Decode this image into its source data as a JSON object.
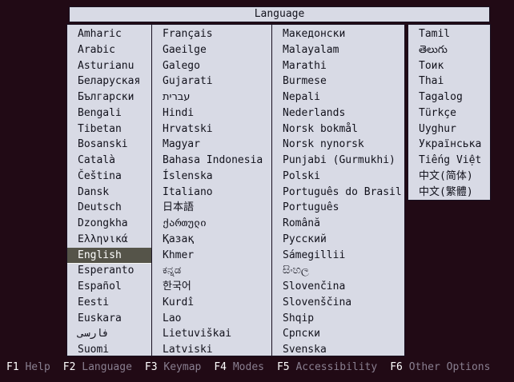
{
  "title": "Language",
  "selected_language": "English",
  "columns": [
    {
      "items": [
        "Amharic",
        "Arabic",
        "Asturianu",
        "Беларуская",
        "Български",
        "Bengali",
        "Tibetan",
        "Bosanski",
        "Català",
        "Čeština",
        "Dansk",
        "Deutsch",
        "Dzongkha",
        "Ελληνικά",
        "English",
        "Esperanto",
        "Español",
        "Eesti",
        "Euskara",
        "فارسی",
        "Suomi"
      ]
    },
    {
      "items": [
        "Français",
        "Gaeilge",
        "Galego",
        "Gujarati",
        "עברית",
        "Hindi",
        "Hrvatski",
        "Magyar",
        "Bahasa Indonesia",
        "Íslenska",
        "Italiano",
        "日本語",
        "ქართული",
        "Қазақ",
        "Khmer",
        "ಕನ್ನಡ",
        "한국어",
        "Kurdî",
        "Lao",
        "Lietuviškai",
        "Latviski"
      ]
    },
    {
      "items": [
        "Македонски",
        "Malayalam",
        "Marathi",
        "Burmese",
        "Nepali",
        "Nederlands",
        "Norsk bokmål",
        "Norsk nynorsk",
        "Punjabi (Gurmukhi)",
        "Polski",
        "Português do Brasil",
        "Português",
        "Română",
        "Русский",
        "Sámegillii",
        "සිංහල",
        "Slovenčina",
        "Slovenščina",
        "Shqip",
        "Српски",
        "Svenska"
      ]
    },
    {
      "items": [
        "Tamil",
        "తెలుగు",
        "Тоик",
        "Thai",
        "Tagalog",
        "Türkçe",
        "Uyghur",
        "Українська",
        "Tiếng Việt",
        "中文(简体)",
        "中文(繁體)"
      ]
    }
  ],
  "function_keys": [
    {
      "key": "F1",
      "label": "Help"
    },
    {
      "key": "F2",
      "label": "Language"
    },
    {
      "key": "F3",
      "label": "Keymap"
    },
    {
      "key": "F4",
      "label": "Modes"
    },
    {
      "key": "F5",
      "label": "Accessibility"
    },
    {
      "key": "F6",
      "label": "Other Options"
    }
  ],
  "colors": {
    "background": "#210a15",
    "panel": "#d8dae5",
    "text": "#12121c",
    "highlight_bg": "#555449",
    "highlight_text": "#ffffff",
    "fkey_text": "#ffffff",
    "fkey_label": "#897f90"
  }
}
